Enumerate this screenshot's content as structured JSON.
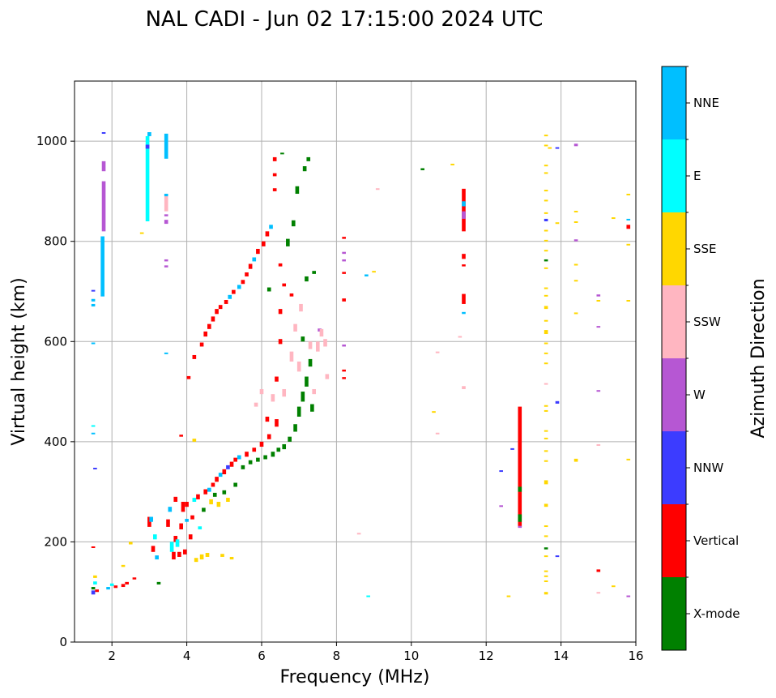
{
  "chart_data": {
    "type": "scatter",
    "title": "NAL CADI - Jun 02 17:15:00 2024 UTC",
    "xlabel": "Frequency (MHz)",
    "ylabel": "Virtual height (km)",
    "xlim": [
      1,
      16
    ],
    "ylim": [
      0,
      1120
    ],
    "xticks": [
      2,
      4,
      6,
      8,
      10,
      12,
      14,
      16
    ],
    "yticks": [
      0,
      200,
      400,
      600,
      800,
      1000
    ],
    "grid": true,
    "colorbar": {
      "label": "Azimuth Direction",
      "categories": [
        "X-mode",
        "Vertical",
        "NNW",
        "W",
        "SSW",
        "SSE",
        "E",
        "NNE"
      ],
      "colors": [
        "#008000",
        "#ff0000",
        "#3c3cff",
        "#b657d3",
        "#ffb6c1",
        "#ffd700",
        "#00ffff",
        "#00bfff"
      ]
    },
    "point_format": [
      "frequency_mhz",
      "height_km",
      "direction_index",
      "height_extent_km"
    ],
    "points": [
      [
        1.5,
        95,
        2,
        8
      ],
      [
        1.5,
        105,
        0,
        5
      ],
      [
        1.55,
        115,
        6,
        6
      ],
      [
        1.55,
        128,
        5,
        5
      ],
      [
        1.6,
        100,
        1,
        5
      ],
      [
        1.5,
        670,
        7,
        5
      ],
      [
        1.5,
        680,
        7,
        5
      ],
      [
        1.5,
        700,
        2,
        3
      ],
      [
        1.5,
        595,
        7,
        3
      ],
      [
        1.5,
        430,
        6,
        3
      ],
      [
        1.5,
        415,
        7,
        3
      ],
      [
        1.55,
        345,
        2,
        3
      ],
      [
        1.5,
        188,
        1,
        3
      ],
      [
        1.75,
        690,
        7,
        120
      ],
      [
        1.78,
        820,
        3,
        100
      ],
      [
        1.78,
        940,
        3,
        20
      ],
      [
        1.78,
        1015,
        2,
        3
      ],
      [
        1.9,
        105,
        7,
        5
      ],
      [
        2.0,
        112,
        6,
        5
      ],
      [
        2.1,
        108,
        1,
        5
      ],
      [
        2.3,
        110,
        1,
        6
      ],
      [
        2.4,
        115,
        1,
        5
      ],
      [
        2.3,
        150,
        5,
        4
      ],
      [
        2.5,
        195,
        5,
        5
      ],
      [
        2.6,
        125,
        1,
        4
      ],
      [
        2.8,
        815,
        5,
        3
      ],
      [
        2.95,
        840,
        6,
        170
      ],
      [
        2.95,
        985,
        2,
        8
      ],
      [
        3.0,
        1010,
        7,
        8
      ],
      [
        3.0,
        230,
        1,
        20
      ],
      [
        3.05,
        240,
        7,
        10
      ],
      [
        3.1,
        180,
        1,
        12
      ],
      [
        3.15,
        205,
        6,
        10
      ],
      [
        3.2,
        165,
        7,
        8
      ],
      [
        3.25,
        115,
        0,
        5
      ],
      [
        3.45,
        965,
        7,
        50
      ],
      [
        3.45,
        860,
        4,
        35
      ],
      [
        3.45,
        835,
        3,
        8
      ],
      [
        3.45,
        850,
        3,
        4
      ],
      [
        3.45,
        890,
        7,
        5
      ],
      [
        3.45,
        760,
        3,
        4
      ],
      [
        3.45,
        748,
        3,
        4
      ],
      [
        3.45,
        575,
        7,
        3
      ],
      [
        3.5,
        230,
        1,
        15
      ],
      [
        3.55,
        260,
        7,
        10
      ],
      [
        3.6,
        180,
        6,
        20
      ],
      [
        3.65,
        165,
        1,
        15
      ],
      [
        3.7,
        200,
        1,
        12
      ],
      [
        3.7,
        280,
        1,
        10
      ],
      [
        3.75,
        190,
        6,
        15
      ],
      [
        3.8,
        170,
        1,
        10
      ],
      [
        3.85,
        225,
        1,
        12
      ],
      [
        3.85,
        410,
        1,
        4
      ],
      [
        3.9,
        260,
        1,
        20
      ],
      [
        3.95,
        175,
        1,
        10
      ],
      [
        4.0,
        270,
        1,
        10
      ],
      [
        4.0,
        240,
        7,
        6
      ],
      [
        4.05,
        525,
        1,
        6
      ],
      [
        4.1,
        205,
        1,
        10
      ],
      [
        4.15,
        245,
        1,
        8
      ],
      [
        4.2,
        280,
        6,
        8
      ],
      [
        4.2,
        400,
        5,
        6
      ],
      [
        4.2,
        565,
        1,
        8
      ],
      [
        4.25,
        160,
        5,
        8
      ],
      [
        4.3,
        285,
        1,
        10
      ],
      [
        4.35,
        225,
        6,
        6
      ],
      [
        4.4,
        165,
        5,
        10
      ],
      [
        4.4,
        590,
        1,
        8
      ],
      [
        4.45,
        260,
        0,
        8
      ],
      [
        4.5,
        295,
        1,
        10
      ],
      [
        4.5,
        610,
        1,
        10
      ],
      [
        4.55,
        170,
        5,
        8
      ],
      [
        4.6,
        300,
        7,
        8
      ],
      [
        4.6,
        625,
        1,
        10
      ],
      [
        4.65,
        275,
        5,
        10
      ],
      [
        4.7,
        310,
        1,
        8
      ],
      [
        4.7,
        640,
        1,
        10
      ],
      [
        4.75,
        290,
        0,
        8
      ],
      [
        4.8,
        320,
        1,
        10
      ],
      [
        4.8,
        655,
        1,
        10
      ],
      [
        4.85,
        270,
        5,
        10
      ],
      [
        4.9,
        330,
        7,
        8
      ],
      [
        4.9,
        665,
        1,
        8
      ],
      [
        4.95,
        170,
        5,
        6
      ],
      [
        5.0,
        335,
        1,
        10
      ],
      [
        5.0,
        295,
        0,
        8
      ],
      [
        5.05,
        675,
        1,
        8
      ],
      [
        5.1,
        345,
        2,
        8
      ],
      [
        5.1,
        280,
        5,
        8
      ],
      [
        5.15,
        685,
        7,
        8
      ],
      [
        5.2,
        350,
        1,
        10
      ],
      [
        5.2,
        165,
        5,
        5
      ],
      [
        5.25,
        695,
        1,
        8
      ],
      [
        5.3,
        360,
        1,
        8
      ],
      [
        5.3,
        310,
        0,
        8
      ],
      [
        5.4,
        705,
        7,
        8
      ],
      [
        5.4,
        365,
        7,
        8
      ],
      [
        5.5,
        345,
        0,
        8
      ],
      [
        5.5,
        715,
        1,
        8
      ],
      [
        5.6,
        370,
        1,
        10
      ],
      [
        5.6,
        730,
        1,
        8
      ],
      [
        5.7,
        355,
        0,
        8
      ],
      [
        5.7,
        745,
        1,
        10
      ],
      [
        5.8,
        380,
        1,
        8
      ],
      [
        5.8,
        760,
        7,
        8
      ],
      [
        5.85,
        470,
        4,
        8
      ],
      [
        5.9,
        360,
        0,
        8
      ],
      [
        5.9,
        775,
        1,
        10
      ],
      [
        6.0,
        390,
        1,
        10
      ],
      [
        6.0,
        495,
        4,
        10
      ],
      [
        6.05,
        790,
        1,
        10
      ],
      [
        6.1,
        365,
        0,
        8
      ],
      [
        6.15,
        440,
        1,
        10
      ],
      [
        6.15,
        810,
        1,
        10
      ],
      [
        6.2,
        405,
        1,
        10
      ],
      [
        6.2,
        700,
        0,
        8
      ],
      [
        6.25,
        825,
        7,
        8
      ],
      [
        6.3,
        370,
        0,
        10
      ],
      [
        6.3,
        480,
        4,
        15
      ],
      [
        6.35,
        960,
        1,
        8
      ],
      [
        6.35,
        930,
        1,
        6
      ],
      [
        6.35,
        900,
        1,
        6
      ],
      [
        6.4,
        430,
        1,
        15
      ],
      [
        6.4,
        520,
        1,
        10
      ],
      [
        6.45,
        380,
        0,
        8
      ],
      [
        6.5,
        595,
        1,
        10
      ],
      [
        6.5,
        655,
        1,
        10
      ],
      [
        6.5,
        750,
        1,
        6
      ],
      [
        6.55,
        975,
        0,
        2
      ],
      [
        6.6,
        490,
        4,
        15
      ],
      [
        6.6,
        385,
        0,
        10
      ],
      [
        6.6,
        710,
        1,
        6
      ],
      [
        6.7,
        790,
        0,
        15
      ],
      [
        6.75,
        400,
        0,
        10
      ],
      [
        6.8,
        560,
        4,
        20
      ],
      [
        6.8,
        690,
        1,
        6
      ],
      [
        6.85,
        830,
        0,
        12
      ],
      [
        6.9,
        420,
        0,
        15
      ],
      [
        6.9,
        620,
        4,
        15
      ],
      [
        6.95,
        895,
        0,
        15
      ],
      [
        7.0,
        450,
        0,
        20
      ],
      [
        7.0,
        540,
        4,
        20
      ],
      [
        7.05,
        660,
        4,
        15
      ],
      [
        7.1,
        480,
        0,
        20
      ],
      [
        7.1,
        600,
        0,
        10
      ],
      [
        7.15,
        940,
        0,
        10
      ],
      [
        7.2,
        510,
        0,
        20
      ],
      [
        7.2,
        720,
        0,
        10
      ],
      [
        7.25,
        960,
        0,
        8
      ],
      [
        7.3,
        550,
        0,
        15
      ],
      [
        7.3,
        585,
        4,
        15
      ],
      [
        7.35,
        460,
        0,
        15
      ],
      [
        7.4,
        495,
        4,
        10
      ],
      [
        7.4,
        735,
        0,
        6
      ],
      [
        7.5,
        580,
        4,
        20
      ],
      [
        7.55,
        620,
        3,
        6
      ],
      [
        7.6,
        610,
        4,
        15
      ],
      [
        7.7,
        590,
        4,
        15
      ],
      [
        7.75,
        525,
        4,
        10
      ],
      [
        8.2,
        805,
        1,
        4
      ],
      [
        8.2,
        775,
        3,
        4
      ],
      [
        8.2,
        760,
        3,
        4
      ],
      [
        8.2,
        735,
        1,
        4
      ],
      [
        8.2,
        680,
        1,
        6
      ],
      [
        8.2,
        590,
        3,
        4
      ],
      [
        8.2,
        540,
        1,
        4
      ],
      [
        8.2,
        525,
        1,
        4
      ],
      [
        8.6,
        215,
        4,
        3
      ],
      [
        8.8,
        730,
        7,
        4
      ],
      [
        8.85,
        90,
        6,
        3
      ],
      [
        9.0,
        738,
        5,
        3
      ],
      [
        9.1,
        903,
        4,
        3
      ],
      [
        10.3,
        942,
        0,
        4
      ],
      [
        10.6,
        458,
        5,
        3
      ],
      [
        10.7,
        578,
        4,
        2
      ],
      [
        10.7,
        415,
        4,
        3
      ],
      [
        11.1,
        952,
        5,
        3
      ],
      [
        11.4,
        820,
        1,
        85
      ],
      [
        11.4,
        845,
        3,
        15
      ],
      [
        11.4,
        870,
        7,
        10
      ],
      [
        11.4,
        765,
        1,
        10
      ],
      [
        11.4,
        750,
        1,
        4
      ],
      [
        11.4,
        675,
        1,
        20
      ],
      [
        11.4,
        655,
        7,
        4
      ],
      [
        11.3,
        608,
        4,
        3
      ],
      [
        11.4,
        505,
        4,
        6
      ],
      [
        12.4,
        340,
        2,
        3
      ],
      [
        12.4,
        270,
        3,
        3
      ],
      [
        12.6,
        90,
        5,
        3
      ],
      [
        12.7,
        384,
        2,
        3
      ],
      [
        12.9,
        230,
        1,
        240
      ],
      [
        12.9,
        240,
        0,
        15
      ],
      [
        12.9,
        300,
        0,
        10
      ],
      [
        12.9,
        228,
        3,
        4
      ],
      [
        13.6,
        1010,
        5,
        3
      ],
      [
        13.6,
        990,
        5,
        3
      ],
      [
        13.7,
        985,
        5,
        3
      ],
      [
        13.6,
        950,
        5,
        3
      ],
      [
        13.6,
        935,
        5,
        3
      ],
      [
        13.6,
        900,
        5,
        3
      ],
      [
        13.6,
        880,
        5,
        3
      ],
      [
        13.6,
        855,
        5,
        3
      ],
      [
        13.6,
        840,
        2,
        5
      ],
      [
        13.6,
        820,
        5,
        3
      ],
      [
        13.6,
        800,
        5,
        3
      ],
      [
        13.6,
        780,
        5,
        3
      ],
      [
        13.6,
        760,
        0,
        4
      ],
      [
        13.6,
        745,
        5,
        3
      ],
      [
        13.6,
        705,
        5,
        3
      ],
      [
        13.6,
        690,
        5,
        3
      ],
      [
        13.6,
        665,
        5,
        6
      ],
      [
        13.6,
        640,
        5,
        3
      ],
      [
        13.6,
        615,
        5,
        8
      ],
      [
        13.6,
        595,
        5,
        3
      ],
      [
        13.6,
        575,
        5,
        3
      ],
      [
        13.6,
        555,
        5,
        3
      ],
      [
        13.6,
        515,
        4,
        2
      ],
      [
        13.6,
        470,
        5,
        3
      ],
      [
        13.6,
        460,
        5,
        3
      ],
      [
        13.6,
        420,
        5,
        3
      ],
      [
        13.6,
        405,
        5,
        3
      ],
      [
        13.6,
        380,
        5,
        3
      ],
      [
        13.6,
        360,
        5,
        3
      ],
      [
        13.6,
        315,
        5,
        8
      ],
      [
        13.6,
        270,
        5,
        6
      ],
      [
        13.6,
        230,
        5,
        3
      ],
      [
        13.6,
        210,
        5,
        3
      ],
      [
        13.6,
        185,
        0,
        4
      ],
      [
        13.6,
        170,
        5,
        3
      ],
      [
        13.6,
        140,
        5,
        3
      ],
      [
        13.6,
        130,
        5,
        3
      ],
      [
        13.6,
        120,
        5,
        3
      ],
      [
        13.6,
        95,
        5,
        5
      ],
      [
        13.9,
        985,
        2,
        3
      ],
      [
        13.9,
        835,
        5,
        3
      ],
      [
        13.9,
        476,
        2,
        5
      ],
      [
        13.9,
        170,
        2,
        3
      ],
      [
        14.4,
        990,
        3,
        5
      ],
      [
        14.4,
        858,
        5,
        3
      ],
      [
        14.4,
        837,
        5,
        3
      ],
      [
        14.4,
        800,
        3,
        4
      ],
      [
        14.4,
        752,
        5,
        3
      ],
      [
        14.4,
        720,
        5,
        3
      ],
      [
        14.4,
        655,
        5,
        3
      ],
      [
        14.4,
        360,
        5,
        6
      ],
      [
        15.0,
        690,
        3,
        4
      ],
      [
        15.0,
        680,
        5,
        3
      ],
      [
        15.0,
        628,
        3,
        3
      ],
      [
        15.0,
        500,
        3,
        3
      ],
      [
        15.0,
        393,
        4,
        2
      ],
      [
        15.0,
        140,
        1,
        5
      ],
      [
        15.0,
        98,
        4,
        2
      ],
      [
        15.4,
        845,
        5,
        3
      ],
      [
        15.4,
        110,
        5,
        3
      ],
      [
        15.8,
        892,
        5,
        3
      ],
      [
        15.8,
        842,
        7,
        3
      ],
      [
        15.8,
        825,
        1,
        8
      ],
      [
        15.8,
        792,
        5,
        3
      ],
      [
        15.8,
        680,
        5,
        3
      ],
      [
        15.8,
        363,
        5,
        3
      ],
      [
        15.8,
        90,
        3,
        3
      ]
    ]
  }
}
